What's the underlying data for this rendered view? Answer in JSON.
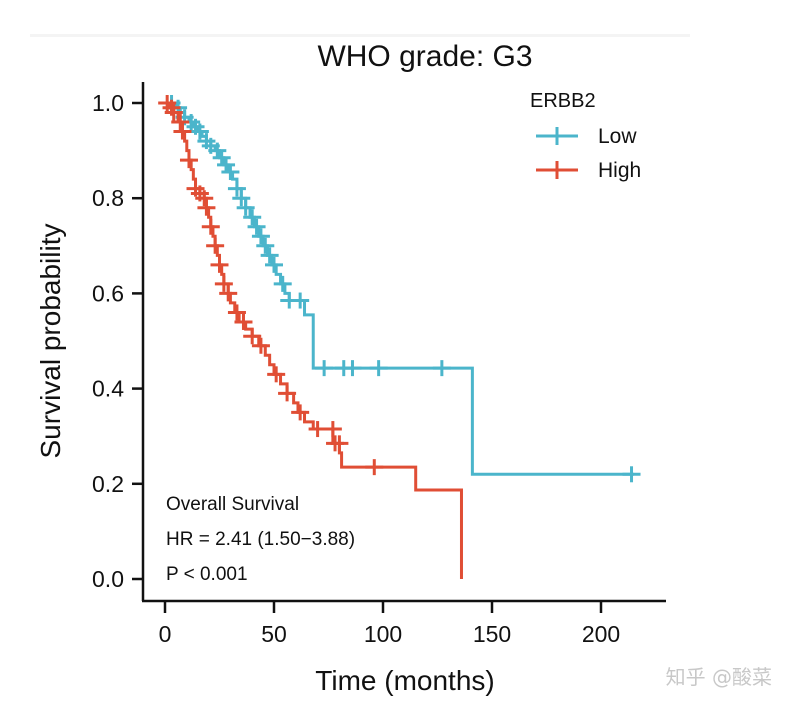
{
  "chart_data": {
    "type": "line",
    "subtype": "kaplan-meier",
    "title": "WHO grade: G3",
    "xlabel": "Time (months)",
    "ylabel": "Survival probability",
    "xlim": [
      -5,
      225
    ],
    "ylim": [
      0,
      1.0
    ],
    "xticks": [
      "0",
      "50",
      "100",
      "150",
      "200"
    ],
    "yticks": [
      "0.0",
      "0.2",
      "0.4",
      "0.6",
      "0.8",
      "1.0"
    ],
    "grid": false,
    "legend": {
      "title": "ERBB2",
      "placement": "top-right",
      "entries": [
        "Low",
        "High"
      ]
    },
    "annotations": [
      "Overall Survival",
      "HR = 2.41 (1.50−3.88)",
      "P < 0.001"
    ],
    "series": [
      {
        "name": "Low",
        "color": "#4BB5CB",
        "steps": [
          [
            0,
            1.0
          ],
          [
            3,
            1.0
          ],
          [
            5,
            0.99
          ],
          [
            7,
            0.98
          ],
          [
            9,
            0.97
          ],
          [
            11,
            0.96
          ],
          [
            13,
            0.95
          ],
          [
            15,
            0.94
          ],
          [
            17,
            0.93
          ],
          [
            19,
            0.92
          ],
          [
            21,
            0.91
          ],
          [
            23,
            0.9
          ],
          [
            25,
            0.885
          ],
          [
            27,
            0.87
          ],
          [
            29,
            0.855
          ],
          [
            31,
            0.84
          ],
          [
            33,
            0.82
          ],
          [
            35,
            0.8
          ],
          [
            37,
            0.78
          ],
          [
            39,
            0.76
          ],
          [
            41,
            0.74
          ],
          [
            43,
            0.72
          ],
          [
            45,
            0.7
          ],
          [
            47,
            0.68
          ],
          [
            49,
            0.66
          ],
          [
            51,
            0.64
          ],
          [
            53,
            0.62
          ],
          [
            55,
            0.6
          ],
          [
            57,
            0.585
          ],
          [
            60,
            0.585
          ],
          [
            64,
            0.555
          ],
          [
            68,
            0.443
          ],
          [
            141,
            0.22
          ],
          [
            215,
            0.22
          ]
        ],
        "censored": [
          [
            3,
            1.0
          ],
          [
            6,
            0.99
          ],
          [
            9,
            0.97
          ],
          [
            12,
            0.96
          ],
          [
            14,
            0.95
          ],
          [
            16,
            0.94
          ],
          [
            19,
            0.92
          ],
          [
            21,
            0.91
          ],
          [
            24,
            0.9
          ],
          [
            26,
            0.885
          ],
          [
            28,
            0.87
          ],
          [
            30,
            0.855
          ],
          [
            33,
            0.82
          ],
          [
            35,
            0.8
          ],
          [
            37,
            0.78
          ],
          [
            40,
            0.76
          ],
          [
            42,
            0.74
          ],
          [
            44,
            0.72
          ],
          [
            46,
            0.7
          ],
          [
            48,
            0.68
          ],
          [
            50,
            0.66
          ],
          [
            54,
            0.62
          ],
          [
            57,
            0.585
          ],
          [
            62,
            0.585
          ],
          [
            73,
            0.443
          ],
          [
            82,
            0.443
          ],
          [
            86,
            0.443
          ],
          [
            98,
            0.443
          ],
          [
            127,
            0.443
          ],
          [
            214,
            0.22
          ]
        ]
      },
      {
        "name": "High",
        "color": "#E04E35",
        "steps": [
          [
            0,
            1.0
          ],
          [
            2,
            0.99
          ],
          [
            4,
            0.98
          ],
          [
            6,
            0.96
          ],
          [
            8,
            0.94
          ],
          [
            9,
            0.92
          ],
          [
            10,
            0.9
          ],
          [
            11,
            0.88
          ],
          [
            12,
            0.86
          ],
          [
            13,
            0.84
          ],
          [
            14,
            0.82
          ],
          [
            16,
            0.81
          ],
          [
            18,
            0.8
          ],
          [
            19,
            0.78
          ],
          [
            20,
            0.76
          ],
          [
            21,
            0.74
          ],
          [
            22,
            0.72
          ],
          [
            23,
            0.7
          ],
          [
            24,
            0.68
          ],
          [
            25,
            0.66
          ],
          [
            26,
            0.64
          ],
          [
            27,
            0.62
          ],
          [
            29,
            0.6
          ],
          [
            30,
            0.58
          ],
          [
            32,
            0.56
          ],
          [
            34,
            0.54
          ],
          [
            37,
            0.525
          ],
          [
            40,
            0.51
          ],
          [
            43,
            0.49
          ],
          [
            46,
            0.47
          ],
          [
            48,
            0.45
          ],
          [
            50,
            0.43
          ],
          [
            53,
            0.41
          ],
          [
            56,
            0.39
          ],
          [
            59,
            0.37
          ],
          [
            61,
            0.35
          ],
          [
            64,
            0.33
          ],
          [
            68,
            0.315
          ],
          [
            74,
            0.315
          ],
          [
            77,
            0.285
          ],
          [
            80,
            0.265
          ],
          [
            81,
            0.235
          ],
          [
            115,
            0.187
          ],
          [
            136,
            0.0
          ]
        ],
        "censored": [
          [
            1,
            1.0
          ],
          [
            3,
            0.99
          ],
          [
            4,
            0.98
          ],
          [
            7,
            0.96
          ],
          [
            8,
            0.94
          ],
          [
            11,
            0.88
          ],
          [
            14,
            0.82
          ],
          [
            16,
            0.81
          ],
          [
            18,
            0.8
          ],
          [
            19,
            0.78
          ],
          [
            21,
            0.74
          ],
          [
            23,
            0.7
          ],
          [
            25,
            0.66
          ],
          [
            27,
            0.62
          ],
          [
            29,
            0.6
          ],
          [
            33,
            0.56
          ],
          [
            36,
            0.54
          ],
          [
            40,
            0.51
          ],
          [
            44,
            0.49
          ],
          [
            51,
            0.43
          ],
          [
            56,
            0.39
          ],
          [
            62,
            0.35
          ],
          [
            70,
            0.315
          ],
          [
            77,
            0.315
          ],
          [
            78,
            0.285
          ],
          [
            80,
            0.285
          ],
          [
            96,
            0.235
          ]
        ]
      }
    ]
  },
  "watermark": "知乎 @酸菜"
}
